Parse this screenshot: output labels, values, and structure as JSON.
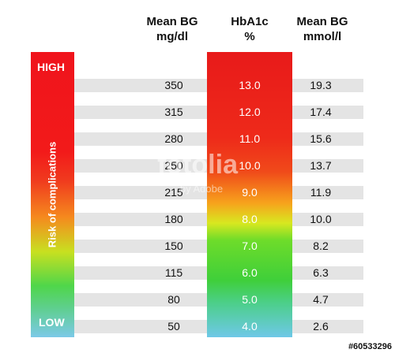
{
  "headers": {
    "mean_bg_mgdl": [
      "Mean BG",
      "mg/dl"
    ],
    "hba1c": [
      "HbA1c",
      "%"
    ],
    "mean_bg_mmol": [
      "Mean BG",
      "mmol/l"
    ]
  },
  "risk_bar": {
    "high_label": "HIGH",
    "low_label": "LOW",
    "axis_label": "Risk of complications"
  },
  "chart_data": {
    "type": "table",
    "columns": [
      "Mean BG mg/dl",
      "HbA1c %",
      "Mean BG mmol/l"
    ],
    "rows": [
      [
        "350",
        "13.0",
        "19.3"
      ],
      [
        "315",
        "12.0",
        "17.4"
      ],
      [
        "280",
        "11.0",
        "15.6"
      ],
      [
        "250",
        "10.0",
        "13.7"
      ],
      [
        "215",
        "9.0",
        "11.9"
      ],
      [
        "180",
        "8.0",
        "10.0"
      ],
      [
        "150",
        "7.0",
        "8.2"
      ],
      [
        "115",
        "6.0",
        "6.3"
      ],
      [
        "80",
        "5.0",
        "4.7"
      ],
      [
        "50",
        "4.0",
        "2.6"
      ]
    ]
  },
  "watermark": {
    "main": "fotolia",
    "sub": "by Adobe"
  },
  "image_id": "#60533296"
}
